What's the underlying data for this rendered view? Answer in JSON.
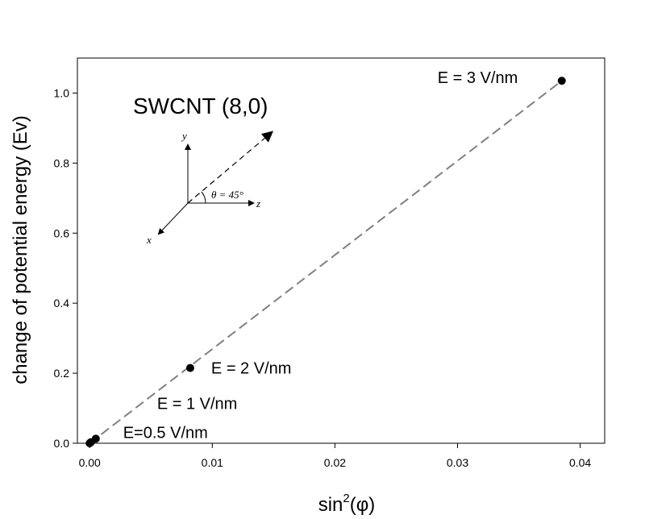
{
  "chart_data": {
    "type": "scatter",
    "title": "SWCNT (8,0)",
    "xlabel": "sin",
    "xlabel_sup": "2",
    "xlabel_tail": "(φ)",
    "ylabel": "change of potential energy (Ev)",
    "xlim": [
      -0.001,
      0.042
    ],
    "ylim": [
      0,
      1.1
    ],
    "xticks": [
      0.0,
      0.01,
      0.02,
      0.03,
      0.04
    ],
    "xtick_labels": [
      "0.00",
      "0.01",
      "0.02",
      "0.03",
      "0.04"
    ],
    "yticks": [
      0.0,
      0.2,
      0.4,
      0.6,
      0.8,
      1.0
    ],
    "ytick_labels": [
      "0.0",
      "0.2",
      "0.4",
      "0.6",
      "0.8",
      "1.0"
    ],
    "grid": false,
    "points": [
      {
        "x": 0.0,
        "y": 0.0,
        "label": ""
      },
      {
        "x": 0.0001,
        "y": 0.003,
        "label": "E=0.5 V/nm"
      },
      {
        "x": 0.0005,
        "y": 0.013,
        "label": "E = 1 V/nm"
      },
      {
        "x": 0.0082,
        "y": 0.215,
        "label": "E = 2 V/nm"
      },
      {
        "x": 0.0385,
        "y": 1.035,
        "label": "E = 3 V/nm"
      }
    ],
    "fit_line": {
      "x": [
        0.0,
        0.0385
      ],
      "y": [
        0.0,
        1.035
      ],
      "style": "dashed",
      "color": "#808080"
    },
    "inset": {
      "axis_y": "y",
      "axis_z": "z",
      "axis_x": "x",
      "angle_label": "θ = 45°"
    },
    "colors": {
      "points": "#000000",
      "fit": "#808080",
      "axes": "#000000"
    }
  }
}
